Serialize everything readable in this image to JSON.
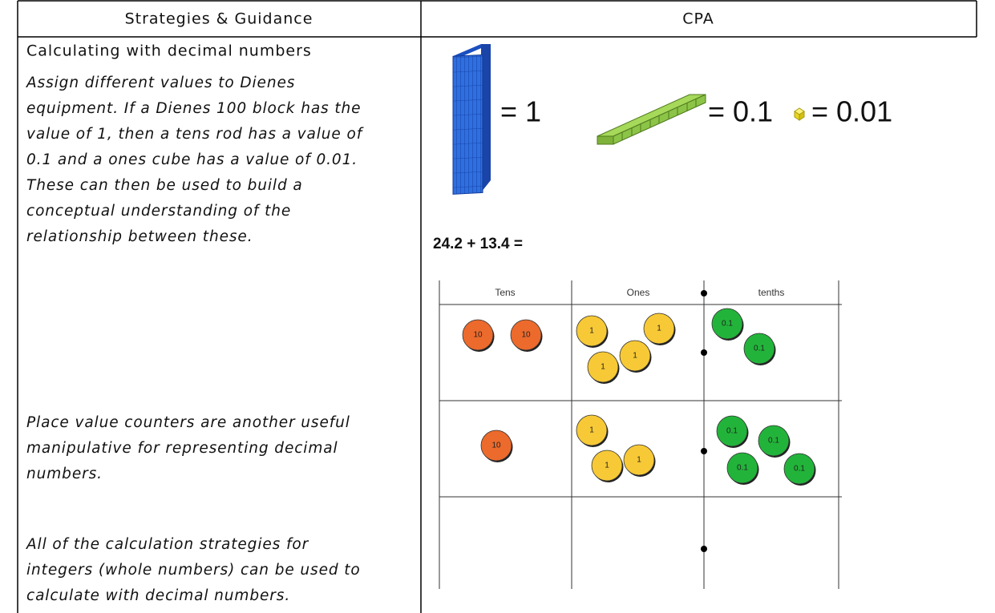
{
  "table": {
    "headers": [
      "Strategies & Guidance",
      "CPA"
    ],
    "left": {
      "title": "Calculating with decimal numbers",
      "paragraphs": [
        {
          "lines": [
            "Assign different values to Dienes",
            "equipment. If a Dienes 100 block has the",
            "value of 1, then a tens rod has a value of",
            "0.1 and a ones cube has a value of 0.01.",
            "These can then be used to build a",
            "conceptual understanding of the",
            "relationship between these."
          ]
        },
        {
          "lines": [
            "Place value counters are another useful",
            "manipulative for representing decimal",
            "numbers."
          ]
        },
        {
          "lines": [
            "All of the calculation strategies for",
            "integers (whole numbers) can be used to",
            "calculate with decimal numbers."
          ]
        }
      ]
    },
    "right": {
      "equivalences": [
        "= 1",
        "= 0.1",
        "= 0.01"
      ],
      "sum": "24.2 + 13.4 =",
      "place_value": {
        "headers": [
          "Tens",
          "Ones",
          "tenths"
        ],
        "rows": [
          {
            "tens": [
              "10",
              "10"
            ],
            "ones": [
              "1",
              "1",
              "1",
              "1"
            ],
            "tenths": [
              "0.1",
              "0.1"
            ]
          },
          {
            "tens": [
              "10"
            ],
            "ones": [
              "1",
              "1",
              "1"
            ],
            "tenths": [
              "0.1",
              "0.1",
              "0.1",
              "0.1"
            ]
          }
        ]
      }
    }
  }
}
